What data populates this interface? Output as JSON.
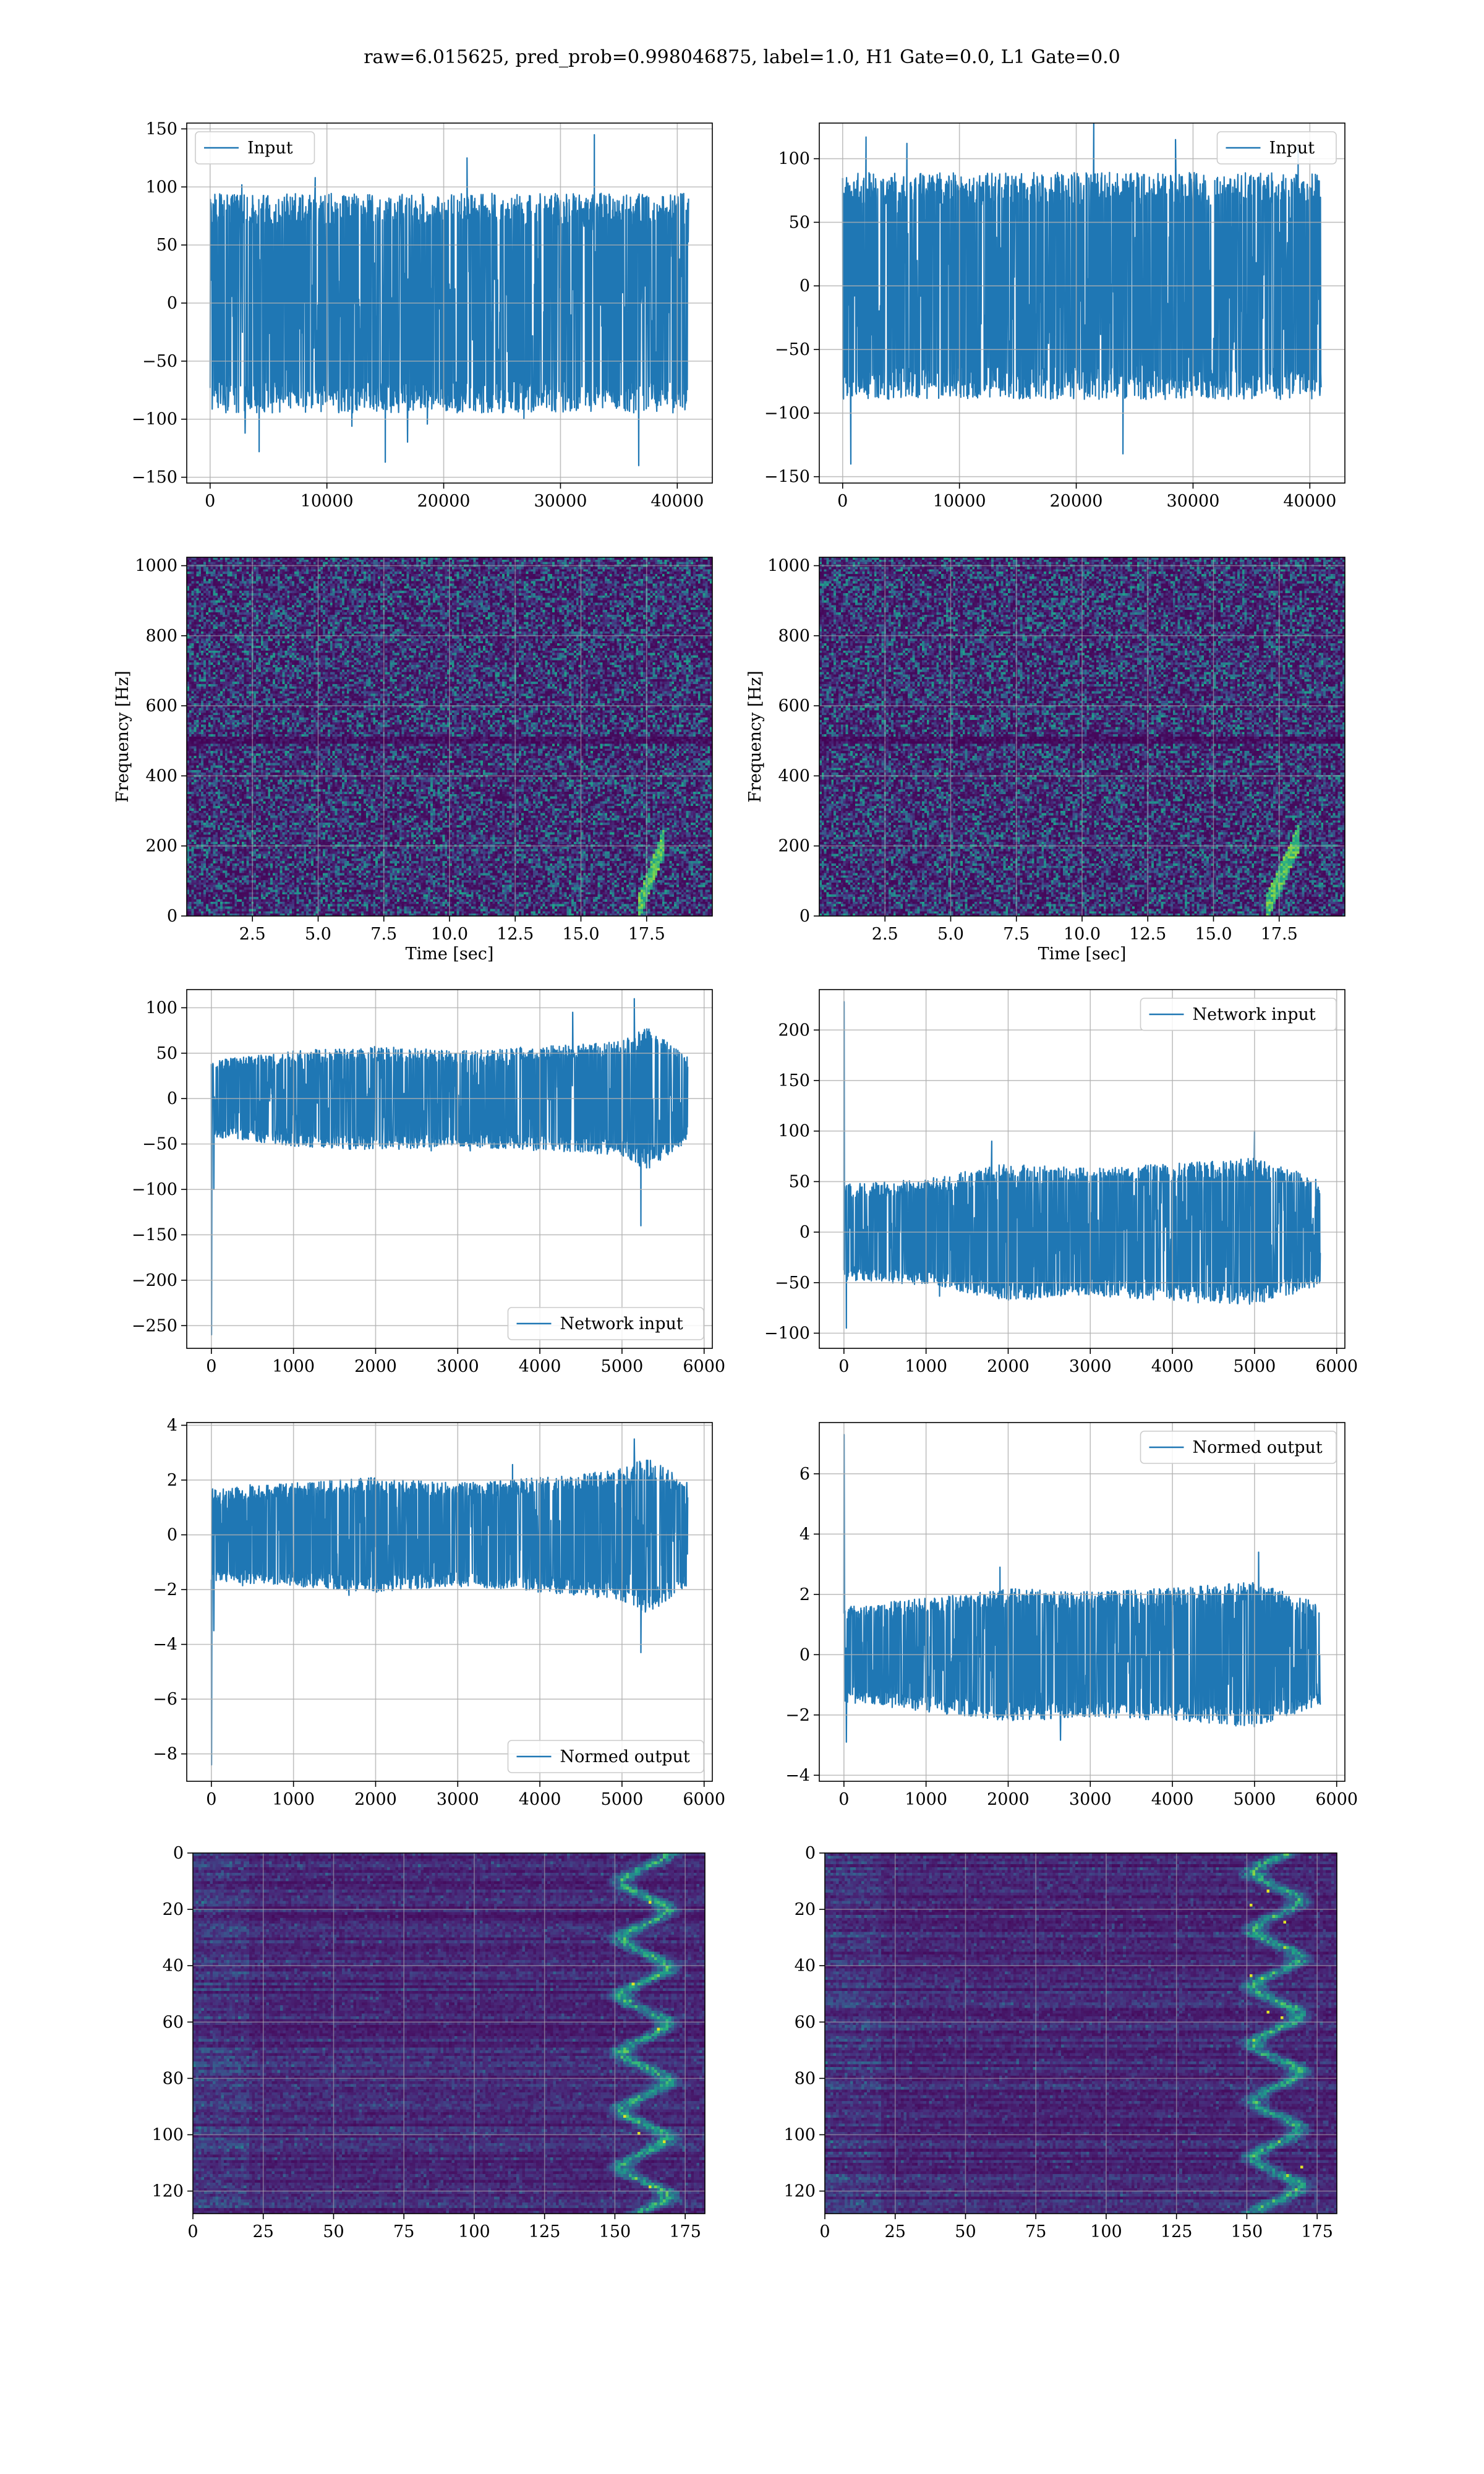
{
  "figure": {
    "title": "raw=6.015625, pred_prob=0.998046875, label=1.0, H1 Gate=0.0, L1 Gate=0.0"
  },
  "colors": {
    "line": "#1f77b4",
    "grid": "#b0b0b0",
    "viridis": [
      "#440154",
      "#482878",
      "#3e4989",
      "#31688e",
      "#26828e",
      "#1f9e89",
      "#35b779",
      "#6ece58",
      "#b5de2b",
      "#fde725"
    ]
  },
  "chart_data": [
    {
      "id": "p11",
      "type": "line",
      "legend": "Input",
      "legend_loc": "upper-left",
      "xlim": [
        -2000,
        43000
      ],
      "ylim": [
        -155,
        155
      ],
      "xticks": [
        0,
        10000,
        20000,
        30000,
        40000
      ],
      "yticks": [
        -150,
        -100,
        -50,
        0,
        50,
        100,
        150
      ],
      "xlabel": "",
      "ylabel": "",
      "n_points": 40960,
      "envelope": [
        [
          0,
          90
        ],
        [
          40960,
          90
        ]
      ],
      "spikes": [
        [
          3000,
          -112
        ],
        [
          4200,
          -128
        ],
        [
          9000,
          108
        ],
        [
          15000,
          -137
        ],
        [
          22000,
          125
        ],
        [
          32900,
          145
        ],
        [
          36700,
          -140
        ]
      ]
    },
    {
      "id": "p12",
      "type": "line",
      "legend": "Input",
      "legend_loc": "upper-right",
      "xlim": [
        -2000,
        43000
      ],
      "ylim": [
        -155,
        128
      ],
      "xticks": [
        0,
        10000,
        20000,
        30000,
        40000
      ],
      "yticks": [
        -150,
        -100,
        -50,
        0,
        50,
        100
      ],
      "xlabel": "",
      "ylabel": "",
      "n_points": 40960,
      "envelope": [
        [
          0,
          85
        ],
        [
          40960,
          85
        ]
      ],
      "spikes": [
        [
          700,
          -140
        ],
        [
          2000,
          117
        ],
        [
          5500,
          112
        ],
        [
          21500,
          130
        ],
        [
          24000,
          -132
        ],
        [
          28500,
          115
        ],
        [
          39000,
          110
        ]
      ]
    },
    {
      "id": "p21",
      "type": "heatmap",
      "kind": "spectrogram",
      "xlim": [
        0,
        20
      ],
      "ylim": [
        0,
        1024
      ],
      "xticks": [
        2.5,
        5.0,
        7.5,
        10.0,
        12.5,
        15.0,
        17.5
      ],
      "yticks": [
        0,
        200,
        400,
        600,
        800,
        1000
      ],
      "xlabel": "Time [sec]",
      "ylabel": "Frequency [Hz]",
      "dark_band_hz": 500,
      "chirp": {
        "t_start": 17.2,
        "t_end": 18.2,
        "f_start": 20,
        "f_end": 220
      }
    },
    {
      "id": "p22",
      "type": "heatmap",
      "kind": "spectrogram",
      "xlim": [
        0,
        20
      ],
      "ylim": [
        0,
        1024
      ],
      "xticks": [
        2.5,
        5.0,
        7.5,
        10.0,
        12.5,
        15.0,
        17.5
      ],
      "yticks": [
        0,
        200,
        400,
        600,
        800,
        1000
      ],
      "xlabel": "Time [sec]",
      "ylabel": "Frequency [Hz]",
      "dark_band_hz": 500,
      "chirp": {
        "t_start": 17.0,
        "t_end": 18.3,
        "f_start": 20,
        "f_end": 230
      }
    },
    {
      "id": "p31",
      "type": "line",
      "legend": "Network input",
      "legend_loc": "lower-right",
      "xlim": [
        -300,
        6100
      ],
      "ylim": [
        -275,
        120
      ],
      "xticks": [
        0,
        1000,
        2000,
        3000,
        4000,
        5000,
        6000
      ],
      "yticks": [
        -250,
        -200,
        -150,
        -100,
        -50,
        0,
        50,
        100
      ],
      "xlabel": "",
      "ylabel": "",
      "n_points": 5800,
      "envelope": [
        [
          0,
          40
        ],
        [
          1000,
          50
        ],
        [
          2000,
          55
        ],
        [
          3000,
          50
        ],
        [
          4000,
          55
        ],
        [
          5000,
          60
        ],
        [
          5300,
          75
        ],
        [
          5800,
          45
        ]
      ],
      "spikes": [
        [
          2,
          -260
        ],
        [
          30,
          -100
        ],
        [
          5150,
          110
        ],
        [
          5230,
          -140
        ],
        [
          4400,
          95
        ]
      ]
    },
    {
      "id": "p32",
      "type": "line",
      "legend": "Network input",
      "legend_loc": "upper-right",
      "xlim": [
        -300,
        6100
      ],
      "ylim": [
        -115,
        240
      ],
      "xticks": [
        0,
        1000,
        2000,
        3000,
        4000,
        5000,
        6000
      ],
      "yticks": [
        -100,
        -50,
        0,
        50,
        100,
        150,
        200
      ],
      "xlabel": "",
      "ylabel": "",
      "n_points": 5800,
      "envelope": [
        [
          0,
          45
        ],
        [
          1000,
          50
        ],
        [
          2000,
          65
        ],
        [
          3000,
          60
        ],
        [
          4000,
          65
        ],
        [
          5000,
          70
        ],
        [
          5800,
          50
        ]
      ],
      "spikes": [
        [
          2,
          228
        ],
        [
          30,
          -95
        ],
        [
          5000,
          100
        ],
        [
          1800,
          90
        ]
      ]
    },
    {
      "id": "p41",
      "type": "line",
      "legend": "Normed output",
      "legend_loc": "lower-right",
      "xlim": [
        -300,
        6100
      ],
      "ylim": [
        -9,
        4.1
      ],
      "xticks": [
        0,
        1000,
        2000,
        3000,
        4000,
        5000,
        6000
      ],
      "yticks": [
        -8,
        -6,
        -4,
        -2,
        0,
        2,
        4
      ],
      "xlabel": "",
      "ylabel": "",
      "n_points": 5800,
      "envelope": [
        [
          0,
          1.6
        ],
        [
          1000,
          1.8
        ],
        [
          2000,
          2.0
        ],
        [
          3000,
          1.8
        ],
        [
          4000,
          2.0
        ],
        [
          5000,
          2.3
        ],
        [
          5300,
          2.8
        ],
        [
          5800,
          1.8
        ]
      ],
      "spikes": [
        [
          2,
          -8.4
        ],
        [
          30,
          -3.5
        ],
        [
          5150,
          3.5
        ],
        [
          5230,
          -4.3
        ]
      ]
    },
    {
      "id": "p42",
      "type": "line",
      "legend": "Normed output",
      "legend_loc": "upper-right",
      "xlim": [
        -300,
        6100
      ],
      "ylim": [
        -4.2,
        7.7
      ],
      "xticks": [
        0,
        1000,
        2000,
        3000,
        4000,
        5000,
        6000
      ],
      "yticks": [
        -4,
        -2,
        0,
        2,
        4,
        6
      ],
      "xlabel": "",
      "ylabel": "",
      "n_points": 5800,
      "envelope": [
        [
          0,
          1.5
        ],
        [
          1000,
          1.8
        ],
        [
          2000,
          2.1
        ],
        [
          3000,
          2.0
        ],
        [
          4000,
          2.1
        ],
        [
          5000,
          2.3
        ],
        [
          5800,
          1.6
        ]
      ],
      "spikes": [
        [
          2,
          7.3
        ],
        [
          30,
          -2.9
        ],
        [
          5050,
          3.4
        ],
        [
          1900,
          2.9
        ]
      ]
    },
    {
      "id": "p51",
      "type": "heatmap",
      "kind": "feature-map",
      "xlim": [
        0,
        182
      ],
      "ylim": [
        128,
        0
      ],
      "xticks": [
        0,
        25,
        50,
        75,
        100,
        125,
        150,
        175
      ],
      "yticks": [
        0,
        20,
        40,
        60,
        80,
        100,
        120
      ],
      "xlabel": "",
      "ylabel": "",
      "n_rows": 128,
      "n_cols": 182,
      "bright_band": [
        152,
        168
      ]
    },
    {
      "id": "p52",
      "type": "heatmap",
      "kind": "feature-map",
      "xlim": [
        0,
        182
      ],
      "ylim": [
        128,
        0
      ],
      "xticks": [
        0,
        25,
        50,
        75,
        100,
        125,
        150,
        175
      ],
      "yticks": [
        0,
        20,
        40,
        60,
        80,
        100,
        120
      ],
      "xlabel": "",
      "ylabel": "",
      "n_rows": 128,
      "n_cols": 182,
      "bright_band": [
        152,
        168
      ]
    }
  ]
}
